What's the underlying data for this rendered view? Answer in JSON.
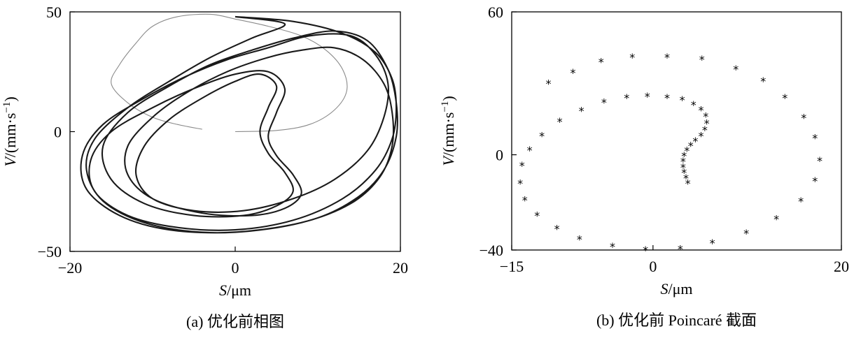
{
  "chart_data": [
    {
      "type": "line",
      "caption": "(a) 优化前相图",
      "xlabel": "S/μm",
      "ylabel": "V/(mm·s⁻¹)",
      "xlim": [
        -20,
        20
      ],
      "ylim": [
        -50,
        50
      ],
      "xticks": [
        -20,
        0,
        20
      ],
      "yticks": [
        50,
        0,
        -50
      ],
      "xtick_labels": [
        "−20",
        "0",
        "20"
      ],
      "ytick_labels": [
        "50",
        "0",
        "−50"
      ],
      "grid": false,
      "series": [
        {
          "role": "transient",
          "color": "#8a8a8a",
          "points": [
            [
              0,
              0
            ],
            [
              5,
              0.5
            ],
            [
              9,
              3
            ],
            [
              12,
              9
            ],
            [
              13.5,
              17
            ],
            [
              13,
              26
            ],
            [
              11,
              34
            ],
            [
              8,
              40
            ],
            [
              4,
              44
            ],
            [
              0,
              47
            ],
            [
              -3,
              49
            ],
            [
              -7,
              48
            ],
            [
              -10,
              44
            ],
            [
              -12,
              37
            ],
            [
              -14,
              28
            ],
            [
              -15,
              20
            ],
            [
              -13,
              12
            ],
            [
              -10,
              6
            ],
            [
              -7,
              3
            ],
            [
              -4,
              1
            ]
          ]
        },
        {
          "role": "steady-state",
          "color": "#1a1a1a",
          "points": [
            [
              0,
              48
            ],
            [
              7,
              46
            ],
            [
              13,
              41
            ],
            [
              17,
              33
            ],
            [
              19,
              22
            ],
            [
              19.5,
              10
            ],
            [
              19,
              -3
            ],
            [
              17,
              -16
            ],
            [
              13,
              -28
            ],
            [
              7,
              -37
            ],
            [
              0,
              -41
            ],
            [
              -7,
              -40
            ],
            [
              -13,
              -35
            ],
            [
              -17,
              -25
            ],
            [
              -17.5,
              -12
            ],
            [
              -15,
              0
            ],
            [
              -10,
              10
            ],
            [
              -5,
              18
            ],
            [
              0,
              24
            ],
            [
              4,
              25
            ],
            [
              6,
              18
            ],
            [
              5,
              8
            ],
            [
              4,
              -2
            ],
            [
              5,
              -10
            ],
            [
              7,
              -18
            ],
            [
              8,
              -26
            ],
            [
              6,
              -32
            ],
            [
              2,
              -35
            ],
            [
              -4,
              -34
            ],
            [
              -10,
              -28
            ],
            [
              -13,
              -18
            ],
            [
              -13,
              -6
            ],
            [
              -10,
              6
            ],
            [
              -6,
              16
            ],
            [
              -1,
              25
            ],
            [
              4,
              31
            ],
            [
              8,
              34
            ],
            [
              12,
              35
            ],
            [
              15.5,
              30
            ],
            [
              18,
              20
            ],
            [
              19,
              8
            ],
            [
              19,
              -6
            ],
            [
              17.5,
              -19
            ],
            [
              14,
              -30
            ],
            [
              8,
              -38
            ],
            [
              0,
              -42
            ],
            [
              -8,
              -41
            ],
            [
              -14,
              -35
            ],
            [
              -18,
              -24
            ],
            [
              -18.5,
              -10
            ],
            [
              -16,
              3
            ],
            [
              -11,
              14
            ],
            [
              -6,
              23
            ],
            [
              -1,
              30
            ],
            [
              4,
              35
            ],
            [
              9,
              40
            ],
            [
              14,
              40
            ],
            [
              17,
              32
            ],
            [
              18.5,
              20
            ],
            [
              18,
              6
            ],
            [
              16,
              -8
            ],
            [
              12,
              -20
            ],
            [
              7,
              -28
            ],
            [
              1,
              -33
            ],
            [
              -5,
              -33
            ],
            [
              -10,
              -28
            ],
            [
              -12,
              -18
            ],
            [
              -11,
              -6
            ],
            [
              -8,
              5
            ],
            [
              -4,
              14
            ],
            [
              0,
              21
            ],
            [
              3,
              24
            ],
            [
              5,
              19
            ],
            [
              4,
              10
            ],
            [
              3,
              0
            ],
            [
              4,
              -9
            ],
            [
              6,
              -17
            ],
            [
              7,
              -25
            ],
            [
              5,
              -31
            ],
            [
              1,
              -35
            ],
            [
              -5,
              -35
            ],
            [
              -11,
              -30
            ],
            [
              -15,
              -20
            ],
            [
              -16,
              -6
            ],
            [
              -13,
              8
            ],
            [
              -8,
              19
            ],
            [
              -3,
              28
            ],
            [
              2,
              34
            ],
            [
              7,
              39
            ],
            [
              12,
              42
            ],
            [
              16,
              38
            ],
            [
              18.5,
              26
            ],
            [
              19.5,
              12
            ],
            [
              19.5,
              -2
            ],
            [
              18,
              -16
            ],
            [
              15,
              -27
            ],
            [
              10,
              -36
            ],
            [
              3,
              -41
            ],
            [
              -4,
              -42
            ],
            [
              -11,
              -38
            ],
            [
              -16,
              -29
            ],
            [
              -18,
              -16
            ],
            [
              -17,
              -3
            ],
            [
              -13,
              10
            ],
            [
              -8,
              21
            ],
            [
              -3,
              31
            ],
            [
              2,
              39
            ],
            [
              6,
              45
            ],
            [
              0,
              48
            ]
          ]
        }
      ]
    },
    {
      "type": "scatter",
      "caption": "(b) 优化前 Poincaré 截面",
      "xlabel": "S/μm",
      "ylabel": "V/(mm·s⁻¹)",
      "xlim": [
        -15,
        20
      ],
      "ylim": [
        -40,
        60
      ],
      "xticks": [
        -15,
        0,
        20
      ],
      "yticks": [
        60,
        0,
        -40
      ],
      "xtick_labels": [
        "−15",
        "0",
        "20"
      ],
      "ytick_labels": [
        "60",
        "0",
        "−40"
      ],
      "marker": "*",
      "grid": false,
      "points": [
        [
          -5.5,
          39
        ],
        [
          -2.2,
          41
        ],
        [
          1.5,
          41
        ],
        [
          5.2,
          40
        ],
        [
          8.8,
          36
        ],
        [
          11.7,
          31
        ],
        [
          14,
          24
        ],
        [
          16,
          15.5
        ],
        [
          17.2,
          7
        ],
        [
          17.7,
          -2.5
        ],
        [
          17.2,
          -11
        ],
        [
          15.7,
          -19.5
        ],
        [
          13.1,
          -27
        ],
        [
          9.9,
          -33
        ],
        [
          6.3,
          -37
        ],
        [
          2.9,
          -39.5
        ],
        [
          -0.8,
          -40
        ],
        [
          -4.3,
          -38.5
        ],
        [
          -7.8,
          -35.5
        ],
        [
          -10.2,
          -31
        ],
        [
          -12.3,
          -25.5
        ],
        [
          -13.6,
          -19
        ],
        [
          -14.1,
          -12
        ],
        [
          -13.9,
          -4.5
        ],
        [
          -13.1,
          2
        ],
        [
          -11.8,
          8
        ],
        [
          -9.9,
          14
        ],
        [
          -7.6,
          18.5
        ],
        [
          -5.2,
          22
        ],
        [
          -2.8,
          24
        ],
        [
          -0.6,
          24.5
        ],
        [
          1.5,
          24
        ],
        [
          3.1,
          23
        ],
        [
          4.3,
          21
        ],
        [
          5.1,
          18.8
        ],
        [
          5.6,
          16.2
        ],
        [
          5.7,
          13.2
        ],
        [
          5.5,
          10.5
        ],
        [
          5.1,
          8
        ],
        [
          4.5,
          5.8
        ],
        [
          4,
          3.8
        ],
        [
          3.6,
          1.8
        ],
        [
          3.3,
          -0.4
        ],
        [
          3.2,
          -2.8
        ],
        [
          3.2,
          -5.2
        ],
        [
          3.3,
          -7.5
        ],
        [
          3.5,
          -9.8
        ],
        [
          3.7,
          -12
        ],
        [
          -8.5,
          34.5
        ],
        [
          -11.1,
          30
        ]
      ]
    }
  ]
}
